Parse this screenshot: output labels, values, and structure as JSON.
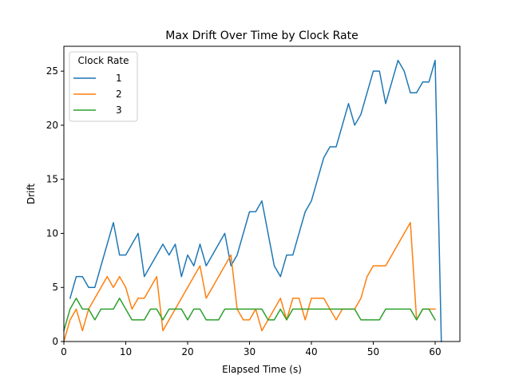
{
  "chart_data": {
    "type": "line",
    "title": "Max Drift Over Time by Clock Rate",
    "xlabel": "Elapsed Time (s)",
    "ylabel": "Drift",
    "xlim": [
      0,
      64
    ],
    "ylim": [
      0,
      27.3
    ],
    "xticks": [
      0,
      10,
      20,
      30,
      40,
      50,
      60
    ],
    "yticks": [
      0,
      5,
      10,
      15,
      20,
      25
    ],
    "grid": false,
    "legend": {
      "title": "Clock Rate",
      "position": "top-left"
    },
    "series": [
      {
        "name": "1",
        "color": "#1f77b4",
        "x": [
          1,
          2,
          3,
          4,
          5,
          6,
          7,
          8,
          9,
          10,
          11,
          12,
          13,
          14,
          15,
          16,
          17,
          18,
          19,
          20,
          21,
          22,
          23,
          24,
          25,
          26,
          27,
          28,
          29,
          30,
          31,
          32,
          33,
          34,
          35,
          36,
          37,
          38,
          39,
          40,
          41,
          42,
          43,
          44,
          45,
          46,
          47,
          48,
          49,
          50,
          51,
          52,
          53,
          54,
          55,
          56,
          57,
          58,
          59,
          60,
          61
        ],
        "y": [
          4,
          6,
          6,
          5,
          5,
          7,
          9,
          11,
          8,
          8,
          9,
          10,
          6,
          7,
          8,
          9,
          8,
          9,
          6,
          8,
          7,
          9,
          7,
          8,
          9,
          10,
          7,
          8,
          10,
          12,
          12,
          13,
          10,
          7,
          6,
          8,
          8,
          10,
          12,
          13,
          15,
          17,
          18,
          18,
          20,
          22,
          20,
          21,
          23,
          25,
          25,
          22,
          24,
          26,
          25,
          23,
          23,
          24,
          24,
          26,
          0
        ]
      },
      {
        "name": "2",
        "color": "#ff7f0e",
        "x": [
          0,
          1,
          2,
          3,
          4,
          5,
          6,
          7,
          8,
          9,
          10,
          11,
          12,
          13,
          14,
          15,
          16,
          17,
          18,
          19,
          20,
          21,
          22,
          23,
          24,
          25,
          26,
          27,
          28,
          29,
          30,
          31,
          32,
          33,
          34,
          35,
          36,
          37,
          38,
          39,
          40,
          41,
          42,
          43,
          44,
          45,
          46,
          47,
          48,
          49,
          50,
          51,
          52,
          53,
          54,
          55,
          56,
          57,
          58,
          59,
          60
        ],
        "y": [
          0,
          2,
          3,
          1,
          3,
          4,
          5,
          6,
          5,
          6,
          5,
          3,
          4,
          4,
          5,
          6,
          1,
          2,
          3,
          4,
          5,
          6,
          7,
          4,
          5,
          6,
          7,
          8,
          3,
          2,
          2,
          3,
          1,
          2,
          3,
          4,
          2,
          4,
          4,
          2,
          4,
          4,
          4,
          3,
          2,
          3,
          3,
          3,
          4,
          6,
          7,
          7,
          7,
          8,
          9,
          10,
          11,
          2,
          3,
          3,
          3
        ]
      },
      {
        "name": "3",
        "color": "#2ca02c",
        "x": [
          0,
          1,
          2,
          3,
          4,
          5,
          6,
          7,
          8,
          9,
          10,
          11,
          12,
          13,
          14,
          15,
          16,
          17,
          18,
          19,
          20,
          21,
          22,
          23,
          24,
          25,
          26,
          27,
          28,
          29,
          30,
          31,
          32,
          33,
          34,
          35,
          36,
          37,
          38,
          39,
          40,
          41,
          42,
          43,
          44,
          45,
          46,
          47,
          48,
          49,
          50,
          51,
          52,
          53,
          54,
          55,
          56,
          57,
          58,
          59,
          60
        ],
        "y": [
          1,
          3,
          4,
          3,
          3,
          2,
          3,
          3,
          3,
          4,
          3,
          2,
          2,
          2,
          3,
          3,
          2,
          3,
          3,
          3,
          2,
          3,
          3,
          2,
          2,
          2,
          3,
          3,
          3,
          3,
          3,
          3,
          3,
          2,
          2,
          3,
          2,
          3,
          3,
          3,
          3,
          3,
          3,
          3,
          3,
          3,
          3,
          3,
          2,
          2,
          2,
          2,
          3,
          3,
          3,
          3,
          3,
          2,
          3,
          3,
          2
        ]
      }
    ]
  }
}
